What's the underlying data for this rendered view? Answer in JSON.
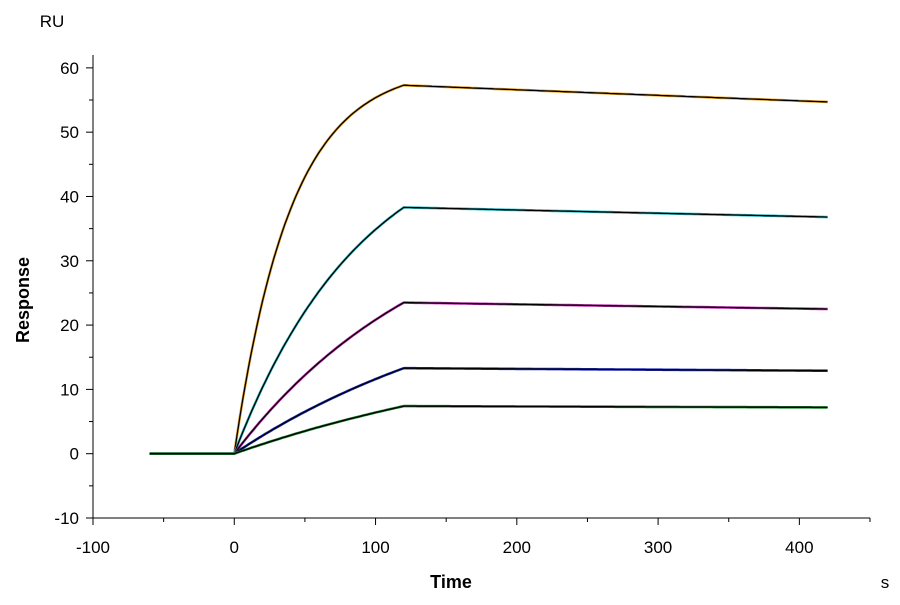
{
  "chart_data": {
    "type": "line",
    "title": "",
    "xlabel": "Time",
    "ylabel": "Response",
    "x_unit": "s",
    "y_unit": "RU",
    "xlim": [
      -100,
      450
    ],
    "ylim": [
      -10,
      62
    ],
    "x_ticks": [
      -100,
      0,
      100,
      200,
      300,
      400
    ],
    "y_ticks": [
      -10,
      0,
      10,
      20,
      30,
      40,
      50,
      60
    ],
    "x_minor_step": 50,
    "y_minor_step": 5,
    "grid": false,
    "legend": "none",
    "association_end": 120,
    "baseline_start": -60,
    "dissociation_end": 420,
    "series": [
      {
        "color": "#e0a030",
        "plateau": 57.3,
        "end": 54.7,
        "k": 0.025
      },
      {
        "color": "#30b8c0",
        "plateau": 38.3,
        "end": 36.8,
        "k": 0.011
      },
      {
        "color": "#c030b0",
        "plateau": 23.5,
        "end": 22.5,
        "k": 0.007
      },
      {
        "color": "#2030c0",
        "plateau": 13.3,
        "end": 12.9,
        "k": 0.005
      },
      {
        "color": "#208030",
        "plateau": 7.4,
        "end": 7.2,
        "k": 0.004
      }
    ],
    "fit_color": "#000000"
  }
}
